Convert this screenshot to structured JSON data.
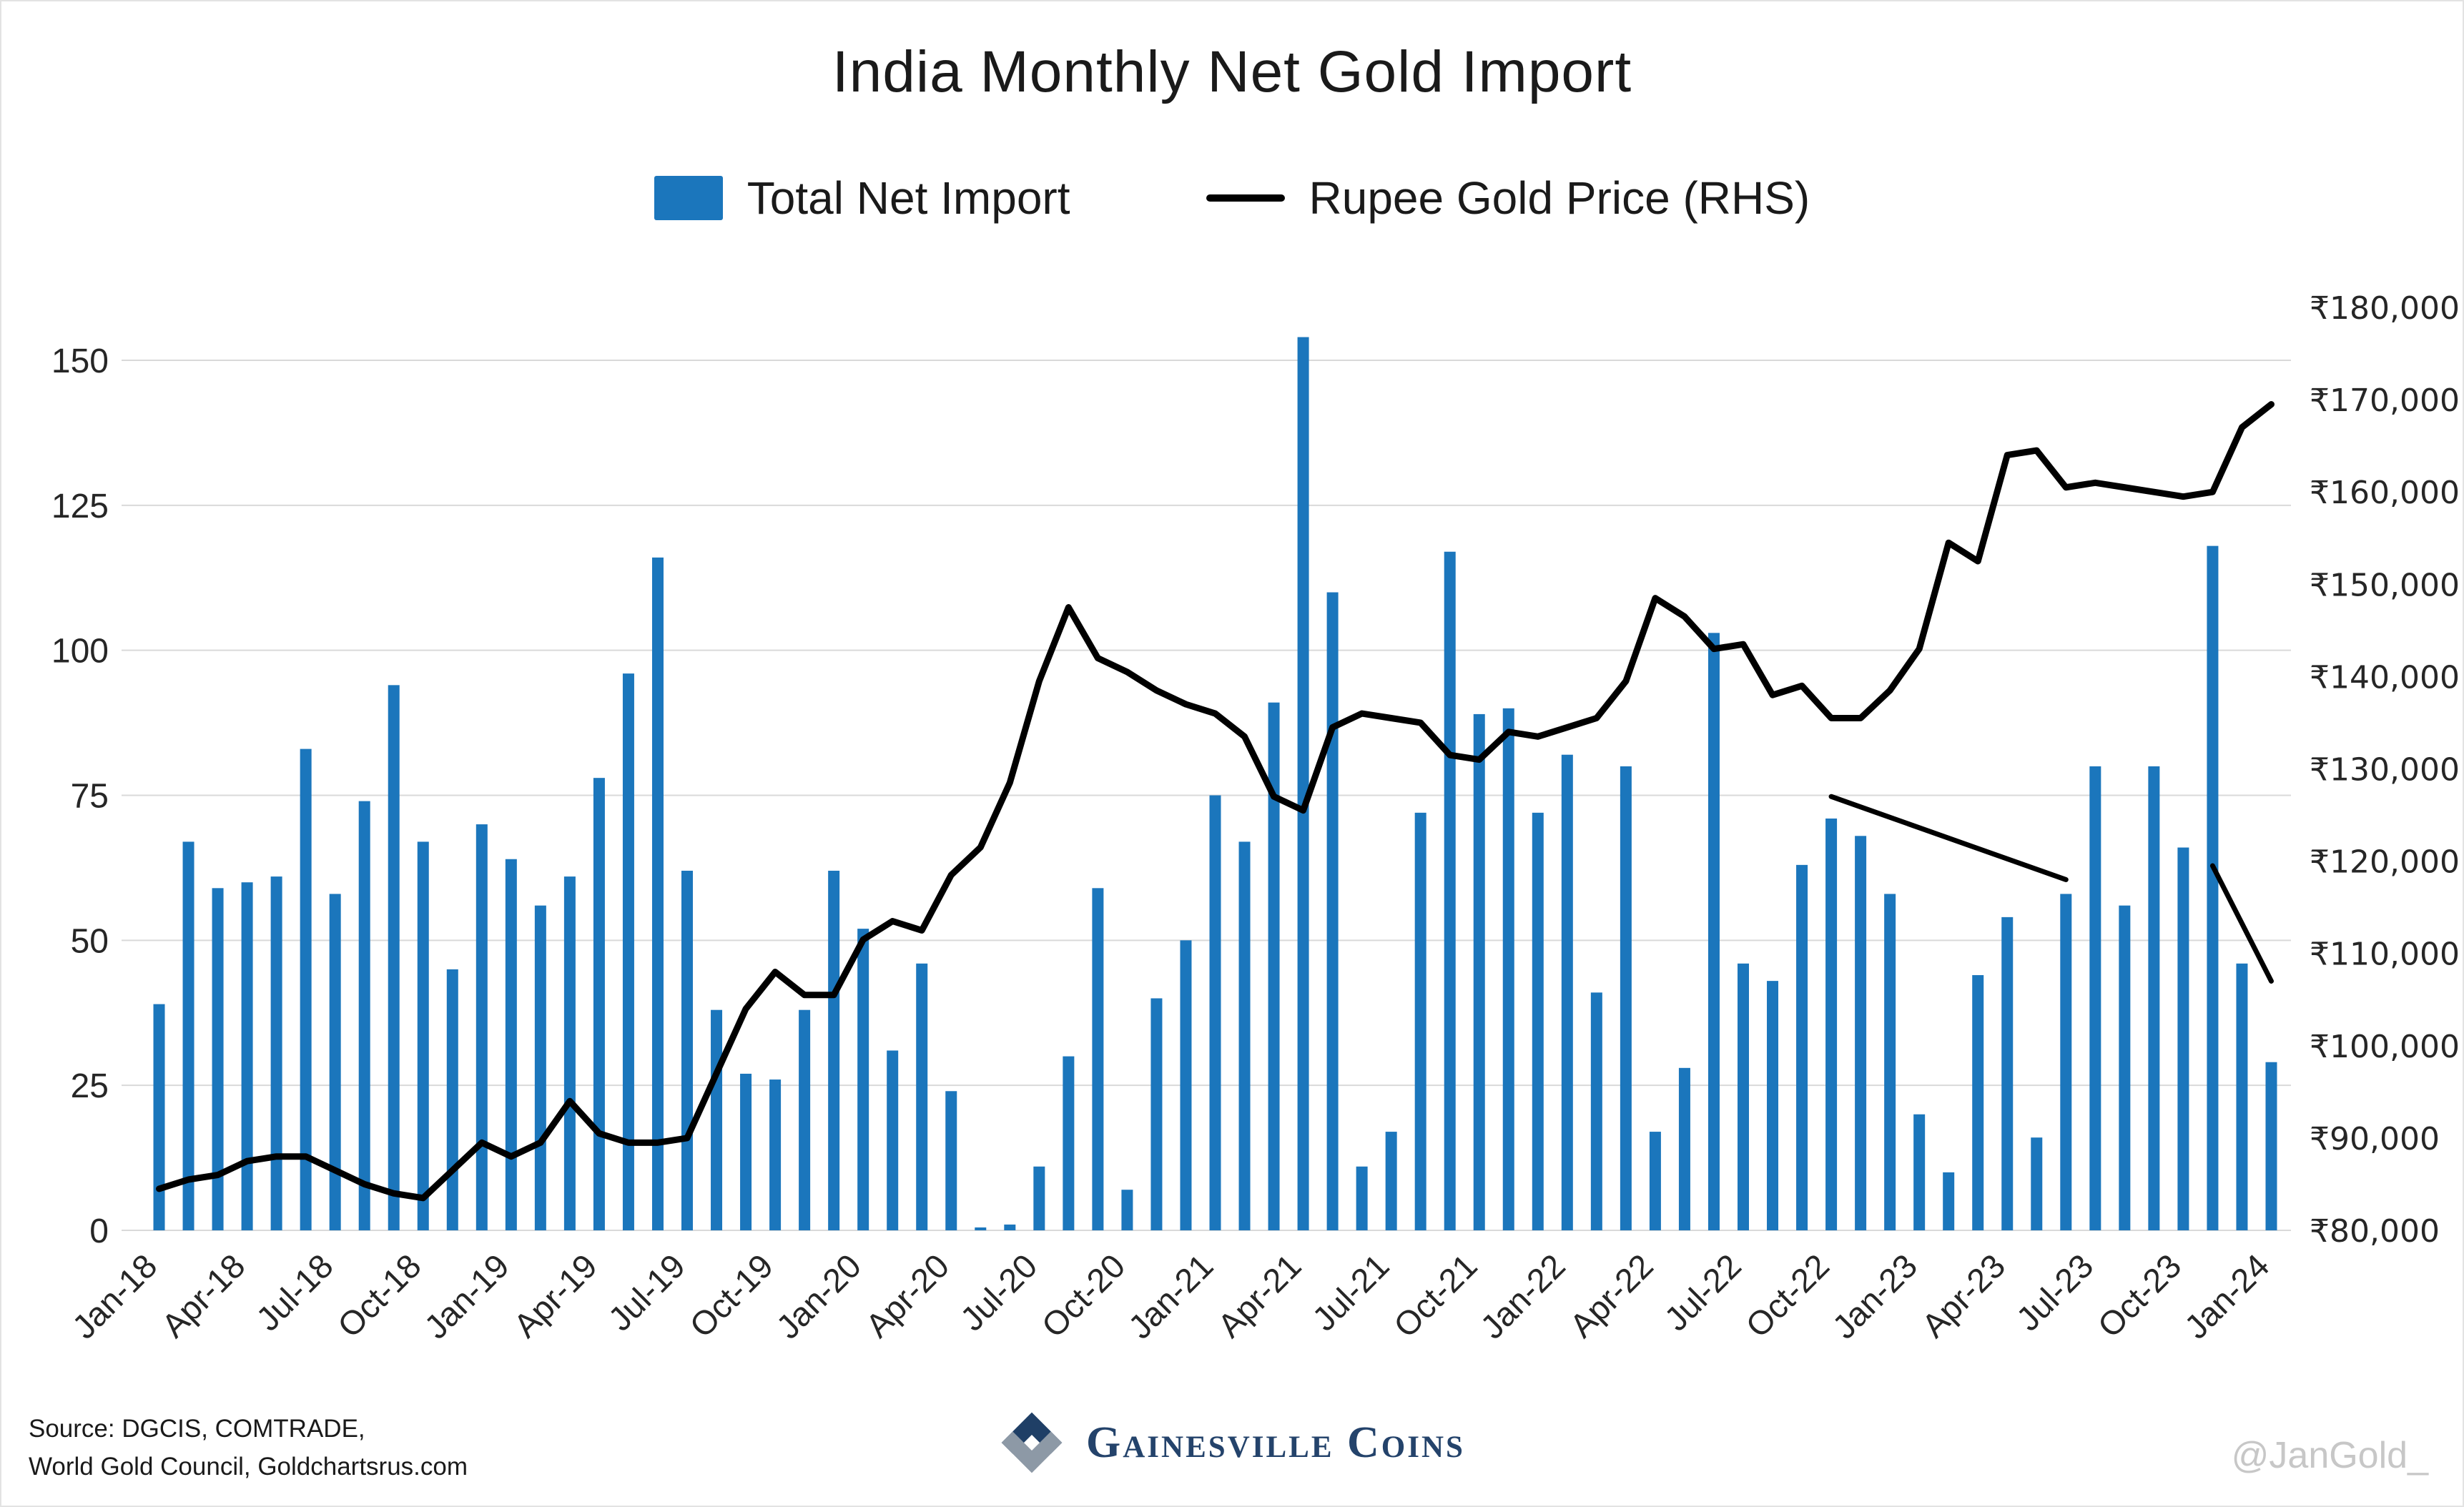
{
  "title": "India Monthly Net Gold Import",
  "legend": {
    "bar_label": "Total Net Import",
    "line_label": "Rupee Gold Price (RHS)"
  },
  "source": {
    "line1": "Source: DGCIS, COMTRADE,",
    "line2": "World Gold Council, Goldchartsrus.com"
  },
  "branding": {
    "name": "Gainesville Coins",
    "watermark": "@JanGold_",
    "logo_navy": "#1f3f66",
    "logo_gray": "#8d99a6"
  },
  "colors": {
    "bar": "#1B76BC",
    "line": "#000000",
    "grid": "#d9d9d9"
  },
  "chart_data": {
    "type": "combo_bar_line",
    "title": "India Monthly Net Gold Import",
    "grid": true,
    "legend_position": "top",
    "months": [
      "Jan-18",
      "Feb-18",
      "Mar-18",
      "Apr-18",
      "May-18",
      "Jun-18",
      "Jul-18",
      "Aug-18",
      "Sep-18",
      "Oct-18",
      "Nov-18",
      "Dec-18",
      "Jan-19",
      "Feb-19",
      "Mar-19",
      "Apr-19",
      "May-19",
      "Jun-19",
      "Jul-19",
      "Aug-19",
      "Sep-19",
      "Oct-19",
      "Nov-19",
      "Dec-19",
      "Jan-20",
      "Feb-20",
      "Mar-20",
      "Apr-20",
      "May-20",
      "Jun-20",
      "Jul-20",
      "Aug-20",
      "Sep-20",
      "Oct-20",
      "Nov-20",
      "Dec-20",
      "Jan-21",
      "Feb-21",
      "Mar-21",
      "Apr-21",
      "May-21",
      "Jun-21",
      "Jul-21",
      "Aug-21",
      "Sep-21",
      "Oct-21",
      "Nov-21",
      "Dec-21",
      "Jan-22",
      "Feb-22",
      "Mar-22",
      "Apr-22",
      "May-22",
      "Jun-22",
      "Jul-22",
      "Aug-22",
      "Sep-22",
      "Oct-22",
      "Nov-22",
      "Dec-22",
      "Jan-23",
      "Feb-23",
      "Mar-23",
      "Apr-23",
      "May-23",
      "Jun-23",
      "Jul-23",
      "Aug-23",
      "Sep-23",
      "Oct-23",
      "Nov-23",
      "Dec-23",
      "Jan-24"
    ],
    "x_ticks": [
      "Jan-18",
      "Apr-18",
      "Jul-18",
      "Oct-18",
      "Jan-19",
      "Apr-19",
      "Jul-19",
      "Oct-19",
      "Jan-20",
      "Apr-20",
      "Jul-20",
      "Oct-20",
      "Jan-21",
      "Apr-21",
      "Jul-21",
      "Oct-21",
      "Jan-22",
      "Apr-22",
      "Jul-22",
      "Oct-22",
      "Jan-23",
      "Apr-23",
      "Jul-23",
      "Oct-23",
      "Jan-24"
    ],
    "series": [
      {
        "name": "Total Net Import",
        "type": "bar",
        "axis": "left",
        "color": "#1B76BC",
        "values": [
          39,
          67,
          59,
          60,
          61,
          83,
          58,
          74,
          94,
          67,
          45,
          70,
          64,
          56,
          61,
          78,
          96,
          116,
          62,
          38,
          27,
          26,
          38,
          62,
          52,
          31,
          46,
          24,
          0.5,
          1,
          11,
          30,
          59,
          7,
          40,
          50,
          75,
          67,
          91,
          154,
          110,
          11,
          17,
          72,
          117,
          89,
          90,
          72,
          82,
          41,
          80,
          17,
          28,
          103,
          46,
          43,
          63,
          71,
          68,
          58,
          20,
          10,
          44,
          54,
          16,
          58,
          80,
          56,
          80,
          66,
          118,
          46,
          29
        ]
      },
      {
        "name": "Rupee Gold Price (RHS)",
        "type": "line",
        "axis": "right",
        "color": "#000000",
        "values": [
          84500,
          85500,
          86000,
          87500,
          88000,
          88000,
          86500,
          85000,
          84000,
          83500,
          86500,
          89500,
          88000,
          89500,
          94000,
          90500,
          89500,
          89500,
          90000,
          97000,
          104000,
          108000,
          105500,
          105500,
          111500,
          113500,
          112500,
          118500,
          121500,
          128500,
          139500,
          147500,
          142000,
          140500,
          138500,
          137000,
          136000,
          133500,
          127000,
          125500,
          134500,
          136000,
          135500,
          135000,
          131500,
          131000,
          134000,
          133500,
          134500,
          135500,
          139500,
          148500,
          146500,
          143000,
          143500,
          138000,
          139000,
          135500,
          135500,
          138500,
          143000,
          154500,
          152500,
          164000,
          164500,
          160500,
          161000,
          160500,
          160000,
          159500,
          160000,
          167000,
          169500
        ]
      }
    ],
    "left_axis": {
      "ticks": [
        0,
        25,
        50,
        75,
        100,
        125,
        150
      ],
      "range": [
        0,
        158
      ]
    },
    "right_axis": {
      "ticks": [
        "₹80,000",
        "₹90,000",
        "₹100,000",
        "₹110,000",
        "₹120,000",
        "₹130,000",
        "₹140,000",
        "₹150,000",
        "₹160,000",
        "₹170,000",
        "₹180,000"
      ],
      "values": [
        80000,
        90000,
        100000,
        110000,
        120000,
        130000,
        140000,
        150000,
        160000,
        170000,
        180000
      ],
      "range": [
        80000,
        180000
      ]
    },
    "annotations": [
      {
        "kind": "trendline",
        "from": {
          "month": "Oct-22",
          "price": 127000
        },
        "to": {
          "month": "Jun-23",
          "price": 118000
        }
      },
      {
        "kind": "trendline",
        "from": {
          "month": "Nov-23",
          "price": 119500
        },
        "to": {
          "month": "Jan-24",
          "price": 107000
        }
      }
    ]
  }
}
